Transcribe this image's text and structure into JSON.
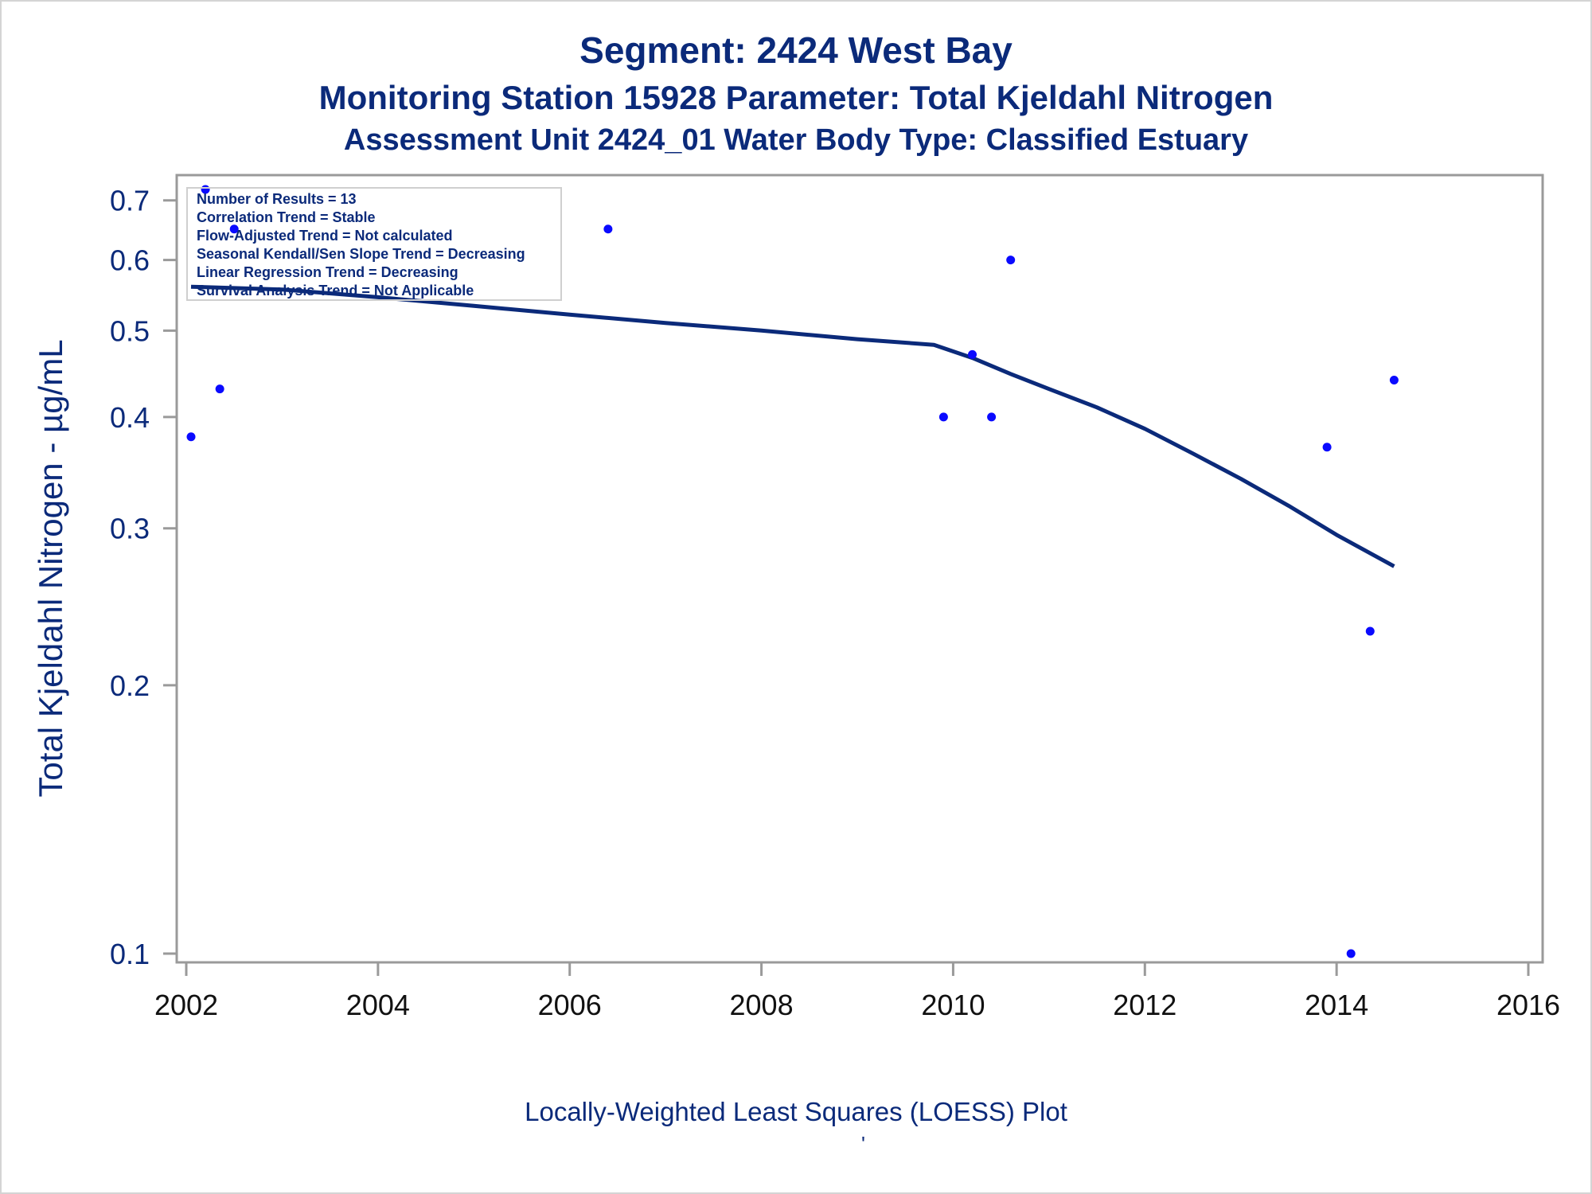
{
  "titles": {
    "line1": "Segment: 2424  West Bay",
    "line2": "Monitoring Station 15928 Parameter: Total Kjeldahl Nitrogen",
    "line3": "Assessment Unit 2424_01   Water Body Type: Classified Estuary"
  },
  "footnote": "Locally-Weighted Least Squares (LOESS) Plot",
  "footmark": "'",
  "colors": {
    "text": "#0b2a7a",
    "points": "#0a0aff",
    "loess": "#0b2a7a",
    "frame": "#9a9a9a"
  },
  "chart_data": {
    "type": "scatter",
    "ylabel": "Total Kjeldahl Nitrogen -  µg/mL",
    "xlabel": "",
    "y_scale": "log",
    "xlim": [
      2002,
      2016
    ],
    "ylim": [
      0.1,
      0.72
    ],
    "x_ticks": [
      2002,
      2004,
      2006,
      2008,
      2010,
      2012,
      2014,
      2016
    ],
    "y_ticks": [
      0.1,
      0.2,
      0.3,
      0.4,
      0.5,
      0.6,
      0.7
    ],
    "x_tick_labels": [
      "2002",
      "2004",
      "2006",
      "2008",
      "2010",
      "2012",
      "2014",
      "2016"
    ],
    "y_tick_labels": [
      "0.1",
      "0.2",
      "0.3",
      "0.4",
      "0.5",
      "0.6",
      "0.7"
    ],
    "grid": false,
    "points": [
      {
        "x": 2002.05,
        "y": 0.38
      },
      {
        "x": 2002.2,
        "y": 0.72
      },
      {
        "x": 2002.35,
        "y": 0.43
      },
      {
        "x": 2002.5,
        "y": 0.65
      },
      {
        "x": 2006.4,
        "y": 0.65
      },
      {
        "x": 2009.9,
        "y": 0.4
      },
      {
        "x": 2010.2,
        "y": 0.47
      },
      {
        "x": 2010.4,
        "y": 0.4
      },
      {
        "x": 2010.6,
        "y": 0.6
      },
      {
        "x": 2013.9,
        "y": 0.37
      },
      {
        "x": 2014.15,
        "y": 0.1
      },
      {
        "x": 2014.35,
        "y": 0.23
      },
      {
        "x": 2014.6,
        "y": 0.44
      }
    ],
    "loess_line": [
      {
        "x": 2002.05,
        "y": 0.56
      },
      {
        "x": 2003.0,
        "y": 0.556
      },
      {
        "x": 2004.0,
        "y": 0.545
      },
      {
        "x": 2005.0,
        "y": 0.533
      },
      {
        "x": 2006.0,
        "y": 0.521
      },
      {
        "x": 2007.0,
        "y": 0.51
      },
      {
        "x": 2008.0,
        "y": 0.5
      },
      {
        "x": 2009.0,
        "y": 0.489
      },
      {
        "x": 2009.8,
        "y": 0.482
      },
      {
        "x": 2010.2,
        "y": 0.466
      },
      {
        "x": 2010.6,
        "y": 0.447
      },
      {
        "x": 2011.0,
        "y": 0.43
      },
      {
        "x": 2011.5,
        "y": 0.41
      },
      {
        "x": 2012.0,
        "y": 0.388
      },
      {
        "x": 2012.5,
        "y": 0.364
      },
      {
        "x": 2013.0,
        "y": 0.341
      },
      {
        "x": 2013.5,
        "y": 0.318
      },
      {
        "x": 2014.0,
        "y": 0.295
      },
      {
        "x": 2014.6,
        "y": 0.272
      }
    ],
    "info_box": [
      "Number of Results = 13",
      "Correlation Trend = Stable",
      "Flow-Adjusted Trend = Not calculated",
      "Seasonal Kendall/Sen Slope Trend = Decreasing",
      "Linear Regression Trend = Decreasing",
      "Survival Analysis Trend = Not Applicable"
    ]
  }
}
